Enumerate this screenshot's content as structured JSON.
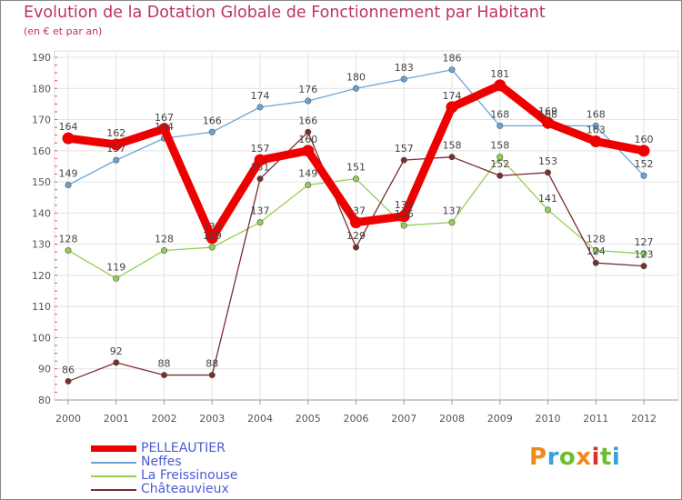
{
  "header": {
    "title": "Evolution de la Dotation Globale de Fonctionnement par Habitant",
    "subtitle": "(en € et par an)"
  },
  "logo": {
    "text": "Proxiti",
    "colors": [
      "#f08a1c",
      "#3aa0d8",
      "#6cbf2a",
      "#f08a1c",
      "#d8342c",
      "#6cbf2a",
      "#3aa0d8"
    ]
  },
  "chart_data": {
    "type": "line",
    "title": "Evolution de la Dotation Globale de Fonctionnement par Habitant",
    "subtitle": "(en € et par an)",
    "xlabel": "",
    "ylabel": "",
    "ylim": [
      80,
      190
    ],
    "yticks": [
      80,
      90,
      100,
      110,
      120,
      130,
      140,
      150,
      160,
      170,
      180,
      190
    ],
    "grid": true,
    "legend_position": "bottom-left",
    "categories": [
      "2000",
      "2001",
      "2002",
      "2003",
      "2004",
      "2005",
      "2006",
      "2007",
      "2008",
      "2009",
      "2010",
      "2011",
      "2012"
    ],
    "series": [
      {
        "name": "PELLEAUTIER",
        "color": "#ee0000",
        "emphasis": true,
        "values": [
          164,
          162,
          167,
          132,
          157,
          160,
          137,
          139,
          174,
          181,
          169,
          163,
          160
        ]
      },
      {
        "name": "Neffes",
        "color": "#6ba3d6",
        "emphasis": false,
        "values": [
          149,
          157,
          164,
          166,
          174,
          176,
          180,
          183,
          186,
          168,
          168,
          168,
          152
        ]
      },
      {
        "name": "La Freissinouse",
        "color": "#92d050",
        "emphasis": false,
        "values": [
          128,
          119,
          128,
          129,
          137,
          149,
          151,
          136,
          137,
          158,
          141,
          128,
          127
        ]
      },
      {
        "name": "Châteauvieux",
        "color": "#7a2e2e",
        "emphasis": false,
        "values": [
          86,
          92,
          88,
          88,
          151,
          166,
          129,
          157,
          158,
          152,
          153,
          124,
          123
        ]
      }
    ],
    "label_order": [
      "Châteauvieux",
      "La Freissinouse",
      "Neffes",
      "PELLEAUTIER"
    ]
  }
}
